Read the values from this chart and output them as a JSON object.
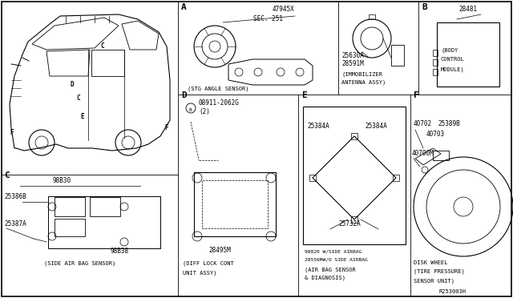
{
  "bg_color": "#ffffff",
  "border_color": "#000000",
  "text_color": "#000000",
  "fig_width": 6.4,
  "fig_height": 3.72,
  "dpi": 100,
  "diagram_ref": "R253003H",
  "sections": {
    "A_label": "A",
    "A_part": "47945X",
    "A_sec": "SEC. 251",
    "A_title": "(STG ANGLE SENSOR)",
    "B_label": "B",
    "B_part": "28481",
    "B_title1": "(BODY",
    "B_title2": "CONTROL",
    "B_title3": "MODULE)",
    "C_label": "C",
    "C_part1": "98B30",
    "C_part2": "25386B",
    "C_part3": "25387A",
    "C_part4": "98B38",
    "C_title": "(SIDE AIR BAG SENSOR)",
    "D_label": "D",
    "D_part1": "08911-2062G",
    "D_part1b": "(2)",
    "D_part2": "28495M",
    "D_title1": "(DIFF LOCK CONT",
    "D_title2": "UNIT ASSY)",
    "E_label": "E",
    "E_part1": "25384A",
    "E_part2": "25384A",
    "E_part3": "25732A",
    "E_sub1": "98820 W/SIDE AIRBAG",
    "E_sub2": "28556MW/O SIDE AIRBAG",
    "E_title1": "(AIR BAG SENSOR",
    "E_title2": "& DIAGNOSIS)",
    "F_label": "F",
    "F_part1": "40702",
    "F_part2": "25389B",
    "F_part3": "40703",
    "F_part4": "40700M",
    "F_title1": "DISK WHEEL",
    "F_title2": "(TIRE PRESSURE)",
    "F_title3": "SENSOR UNIT)",
    "imm_part1": "25630A",
    "imm_part2": "28591M",
    "imm_title1": "(IMMOBILIZER",
    "imm_title2": "ANTENNA ASSY)"
  }
}
